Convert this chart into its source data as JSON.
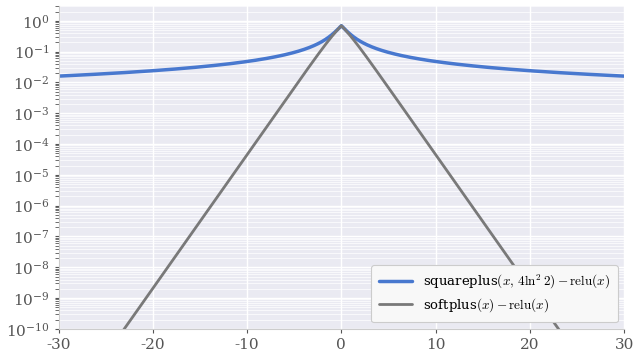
{
  "xmin": -30,
  "xmax": 30,
  "ymin": 1e-10,
  "ymax": 3,
  "blue_color": "#4878cf",
  "gray_color": "#797979",
  "blue_linewidth": 2.5,
  "gray_linewidth": 2.0,
  "xticks": [
    -30,
    -20,
    -10,
    0,
    10,
    20,
    30
  ],
  "background_color": "#eaeaf2",
  "grid_color": "#ffffff",
  "figsize": [
    6.4,
    3.58
  ],
  "dpi": 100,
  "spine_color": "#cccccc",
  "tick_color": "#555555"
}
